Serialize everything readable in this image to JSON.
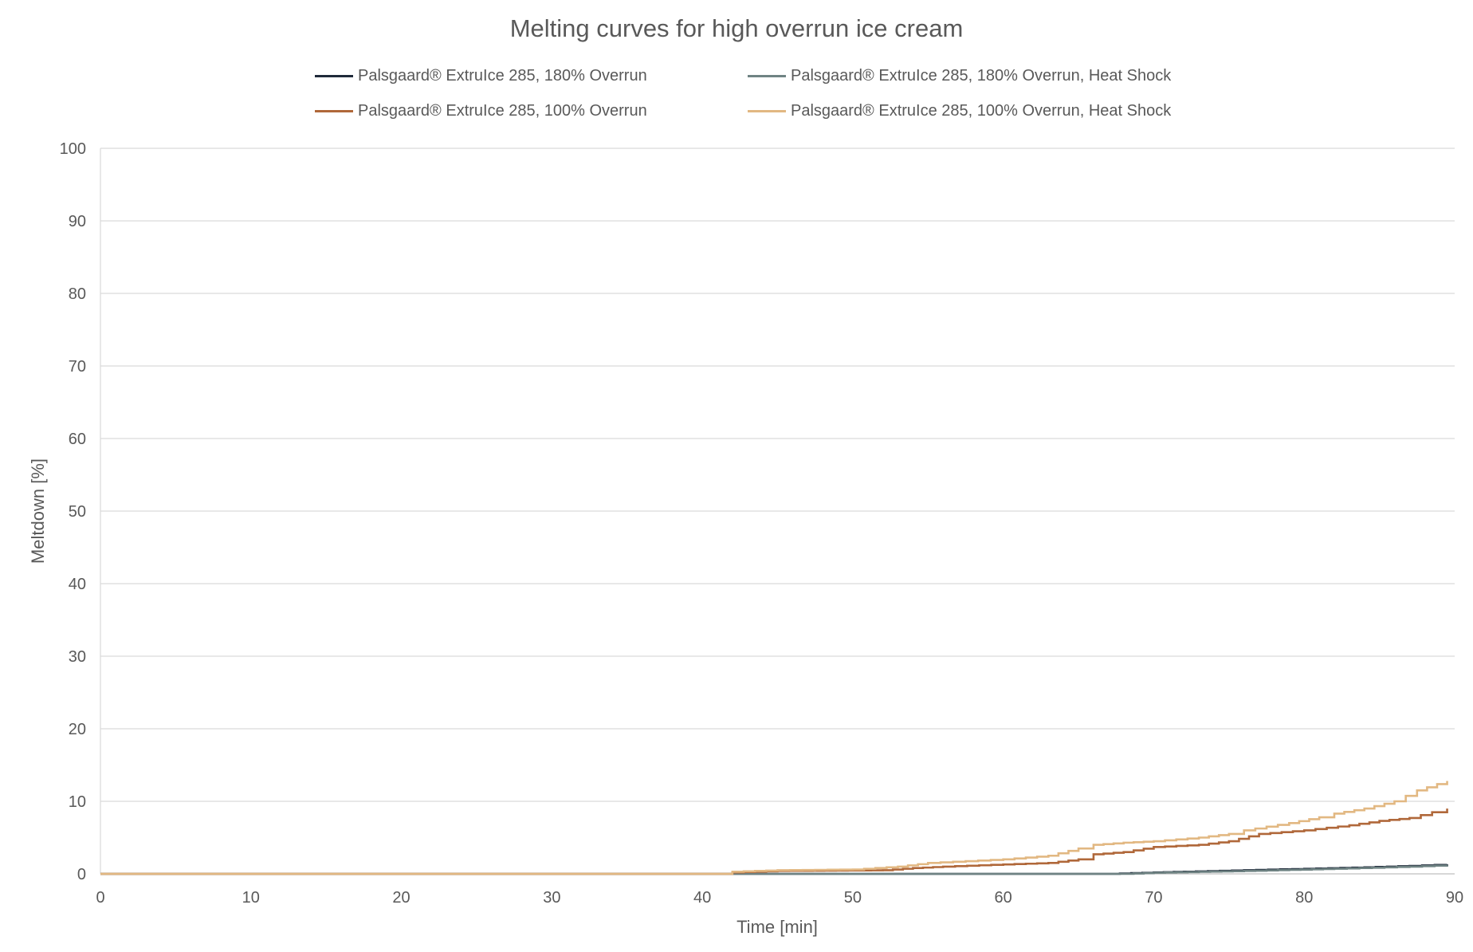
{
  "chart_data": {
    "type": "line",
    "title": "Melting curves for high overrun ice cream",
    "xlabel": "Time [min]",
    "ylabel": "Meltdown [%]",
    "xlim": [
      0,
      90
    ],
    "ylim": [
      0,
      100
    ],
    "xticks": [
      0,
      10,
      20,
      30,
      40,
      50,
      60,
      70,
      80,
      90
    ],
    "yticks": [
      0,
      10,
      20,
      30,
      40,
      50,
      60,
      70,
      80,
      90,
      100
    ],
    "grid": "horizontal",
    "legend_placement": "top",
    "series": [
      {
        "name": "Palsgaard® ExtruIce 285, 180% Overrun",
        "color": "#1f2a3a",
        "points": [
          [
            0,
            0
          ],
          [
            67,
            0
          ],
          [
            70,
            0.2
          ],
          [
            72,
            0.3
          ],
          [
            76,
            0.5
          ],
          [
            80,
            0.7
          ],
          [
            84,
            0.9
          ],
          [
            87,
            1.1
          ],
          [
            89.5,
            1.3
          ]
        ]
      },
      {
        "name": "Palsgaard® ExtruIce 285, 180% Overrun, Heat Shock",
        "color": "#6f8383",
        "points": [
          [
            0,
            0
          ],
          [
            68,
            0
          ],
          [
            70,
            0.15
          ],
          [
            76,
            0.4
          ],
          [
            82,
            0.7
          ],
          [
            87,
            1.0
          ],
          [
            89.5,
            1.2
          ]
        ]
      },
      {
        "name": "Palsgaard® ExtruIce 285, 100% Overrun",
        "color": "#b0683a",
        "points": [
          [
            0,
            0
          ],
          [
            41,
            0
          ],
          [
            42,
            0.2
          ],
          [
            45,
            0.4
          ],
          [
            52,
            0.5
          ],
          [
            54,
            0.8
          ],
          [
            56,
            1.0
          ],
          [
            60,
            1.3
          ],
          [
            63,
            1.5
          ],
          [
            65,
            2.0
          ],
          [
            66,
            2.7
          ],
          [
            68,
            3.0
          ],
          [
            70,
            3.7
          ],
          [
            73,
            4.0
          ],
          [
            75,
            4.5
          ],
          [
            77,
            5.5
          ],
          [
            80,
            6.0
          ],
          [
            83,
            6.7
          ],
          [
            85,
            7.3
          ],
          [
            87,
            7.7
          ],
          [
            88.5,
            8.5
          ],
          [
            89.5,
            9.0
          ]
        ]
      },
      {
        "name": "Palsgaard® ExtruIce 285, 100% Overrun, Heat Shock",
        "color": "#e2b882",
        "points": [
          [
            0,
            0
          ],
          [
            41,
            0
          ],
          [
            42,
            0.3
          ],
          [
            45,
            0.5
          ],
          [
            50,
            0.6
          ],
          [
            53,
            1.0
          ],
          [
            55,
            1.5
          ],
          [
            60,
            2.0
          ],
          [
            63,
            2.5
          ],
          [
            65,
            3.5
          ],
          [
            66,
            4.0
          ],
          [
            68,
            4.3
          ],
          [
            70,
            4.5
          ],
          [
            73,
            5.0
          ],
          [
            75,
            5.5
          ],
          [
            76,
            6.0
          ],
          [
            79,
            7.0
          ],
          [
            81,
            7.8
          ],
          [
            82,
            8.3
          ],
          [
            84,
            9.0
          ],
          [
            86,
            10.0
          ],
          [
            87.5,
            11.5
          ],
          [
            89.5,
            12.8
          ]
        ]
      }
    ]
  }
}
